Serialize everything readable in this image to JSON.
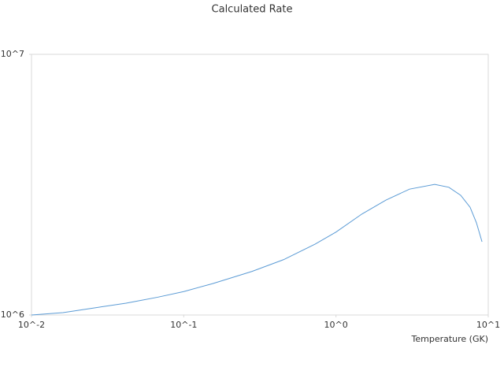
{
  "chart_data": {
    "type": "line",
    "title": "Calculated Rate",
    "x_label": "Temperature (GK)",
    "xscale": "log",
    "yscale": "log",
    "xlim": [
      0.01,
      10
    ],
    "ylim": [
      1000000,
      10000000
    ],
    "xticks": [
      {
        "value": 0.01,
        "label": "10^-2"
      },
      {
        "value": 0.1,
        "label": "10^-1"
      },
      {
        "value": 1,
        "label": "10^0"
      },
      {
        "value": 10,
        "label": "10^1"
      }
    ],
    "yticks": [
      {
        "value": 1000000,
        "label": "10^6"
      },
      {
        "value": 10000000,
        "label": "10^7"
      }
    ],
    "grid": false,
    "x": [
      0.01,
      0.0161,
      0.0259,
      0.0418,
      0.0673,
      0.1,
      0.155,
      0.281,
      0.452,
      0.728,
      1.0,
      1.48,
      2.13,
      3.04,
      4.45,
      5.51,
      6.59,
      7.6,
      8.36,
      9.1
    ],
    "series": [
      {
        "color": "#5b9bd5",
        "values": [
          1000000,
          1021000,
          1065000,
          1110000,
          1170000,
          1230000,
          1320000,
          1470000,
          1630000,
          1870000,
          2080000,
          2440000,
          2760000,
          3040000,
          3170000,
          3090000,
          2880000,
          2590000,
          2260000,
          1910000
        ]
      }
    ]
  }
}
